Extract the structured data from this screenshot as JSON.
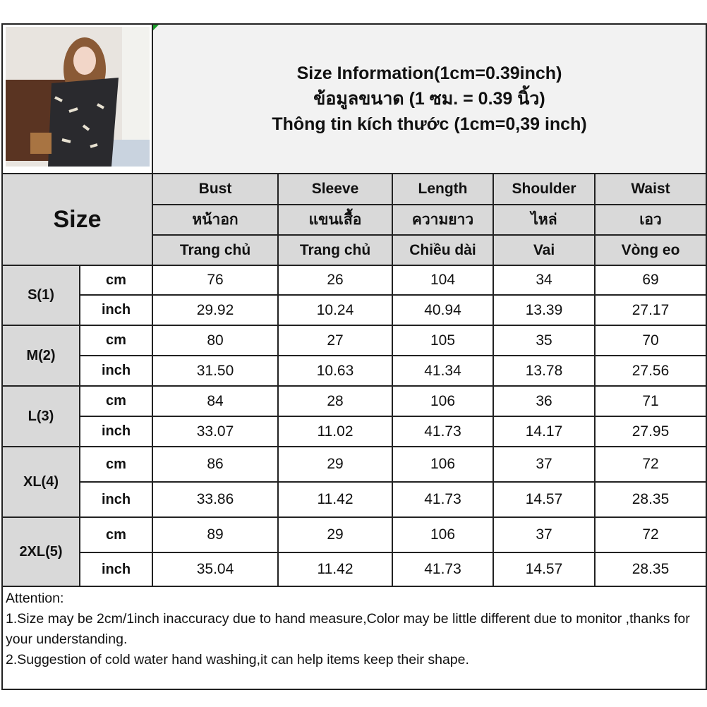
{
  "title_lines": [
    "Size Information(1cm=0.39inch)",
    "ข้อมูลขนาด (1 ซม. = 0.39 นิ้ว)",
    "Thông tin kích thước (1cm=0,39 inch)"
  ],
  "size_label": "Size",
  "columns": [
    {
      "en": "Bust",
      "th": "หน้าอก",
      "vi": "Trang chủ"
    },
    {
      "en": "Sleeve",
      "th": "แขนเสื้อ",
      "vi": "Trang chủ"
    },
    {
      "en": "Length",
      "th": "ความยาว",
      "vi": "Chiều dài"
    },
    {
      "en": "Shoulder",
      "th": "ไหล่",
      "vi": "Vai"
    },
    {
      "en": "Waist",
      "th": "เอว",
      "vi": "Vòng eo"
    }
  ],
  "units": {
    "cm": "cm",
    "inch": "inch"
  },
  "rows": [
    {
      "size": "S(1)",
      "cm": [
        "76",
        "26",
        "104",
        "34",
        "69"
      ],
      "inch": [
        "29.92",
        "10.24",
        "40.94",
        "13.39",
        "27.17"
      ]
    },
    {
      "size": "M(2)",
      "cm": [
        "80",
        "27",
        "105",
        "35",
        "70"
      ],
      "inch": [
        "31.50",
        "10.63",
        "41.34",
        "13.78",
        "27.56"
      ]
    },
    {
      "size": "L(3)",
      "cm": [
        "84",
        "28",
        "106",
        "36",
        "71"
      ],
      "inch": [
        "33.07",
        "11.02",
        "41.73",
        "14.17",
        "27.95"
      ]
    },
    {
      "size": "XL(4)",
      "cm": [
        "86",
        "29",
        "106",
        "37",
        "72"
      ],
      "inch": [
        "33.86",
        "11.42",
        "41.73",
        "14.57",
        "28.35"
      ]
    },
    {
      "size": "2XL(5)",
      "cm": [
        "89",
        "29",
        "106",
        "37",
        "72"
      ],
      "inch": [
        "35.04",
        "11.42",
        "41.73",
        "14.57",
        "28.35"
      ]
    }
  ],
  "attention": [
    "Attention:",
    "1.Size may be 2cm/1inch inaccuracy due to hand measure,Color may be little different due to monitor ,thanks for your understanding.",
    "2.Suggestion of cold water hand washing,it can help items keep their shape."
  ]
}
